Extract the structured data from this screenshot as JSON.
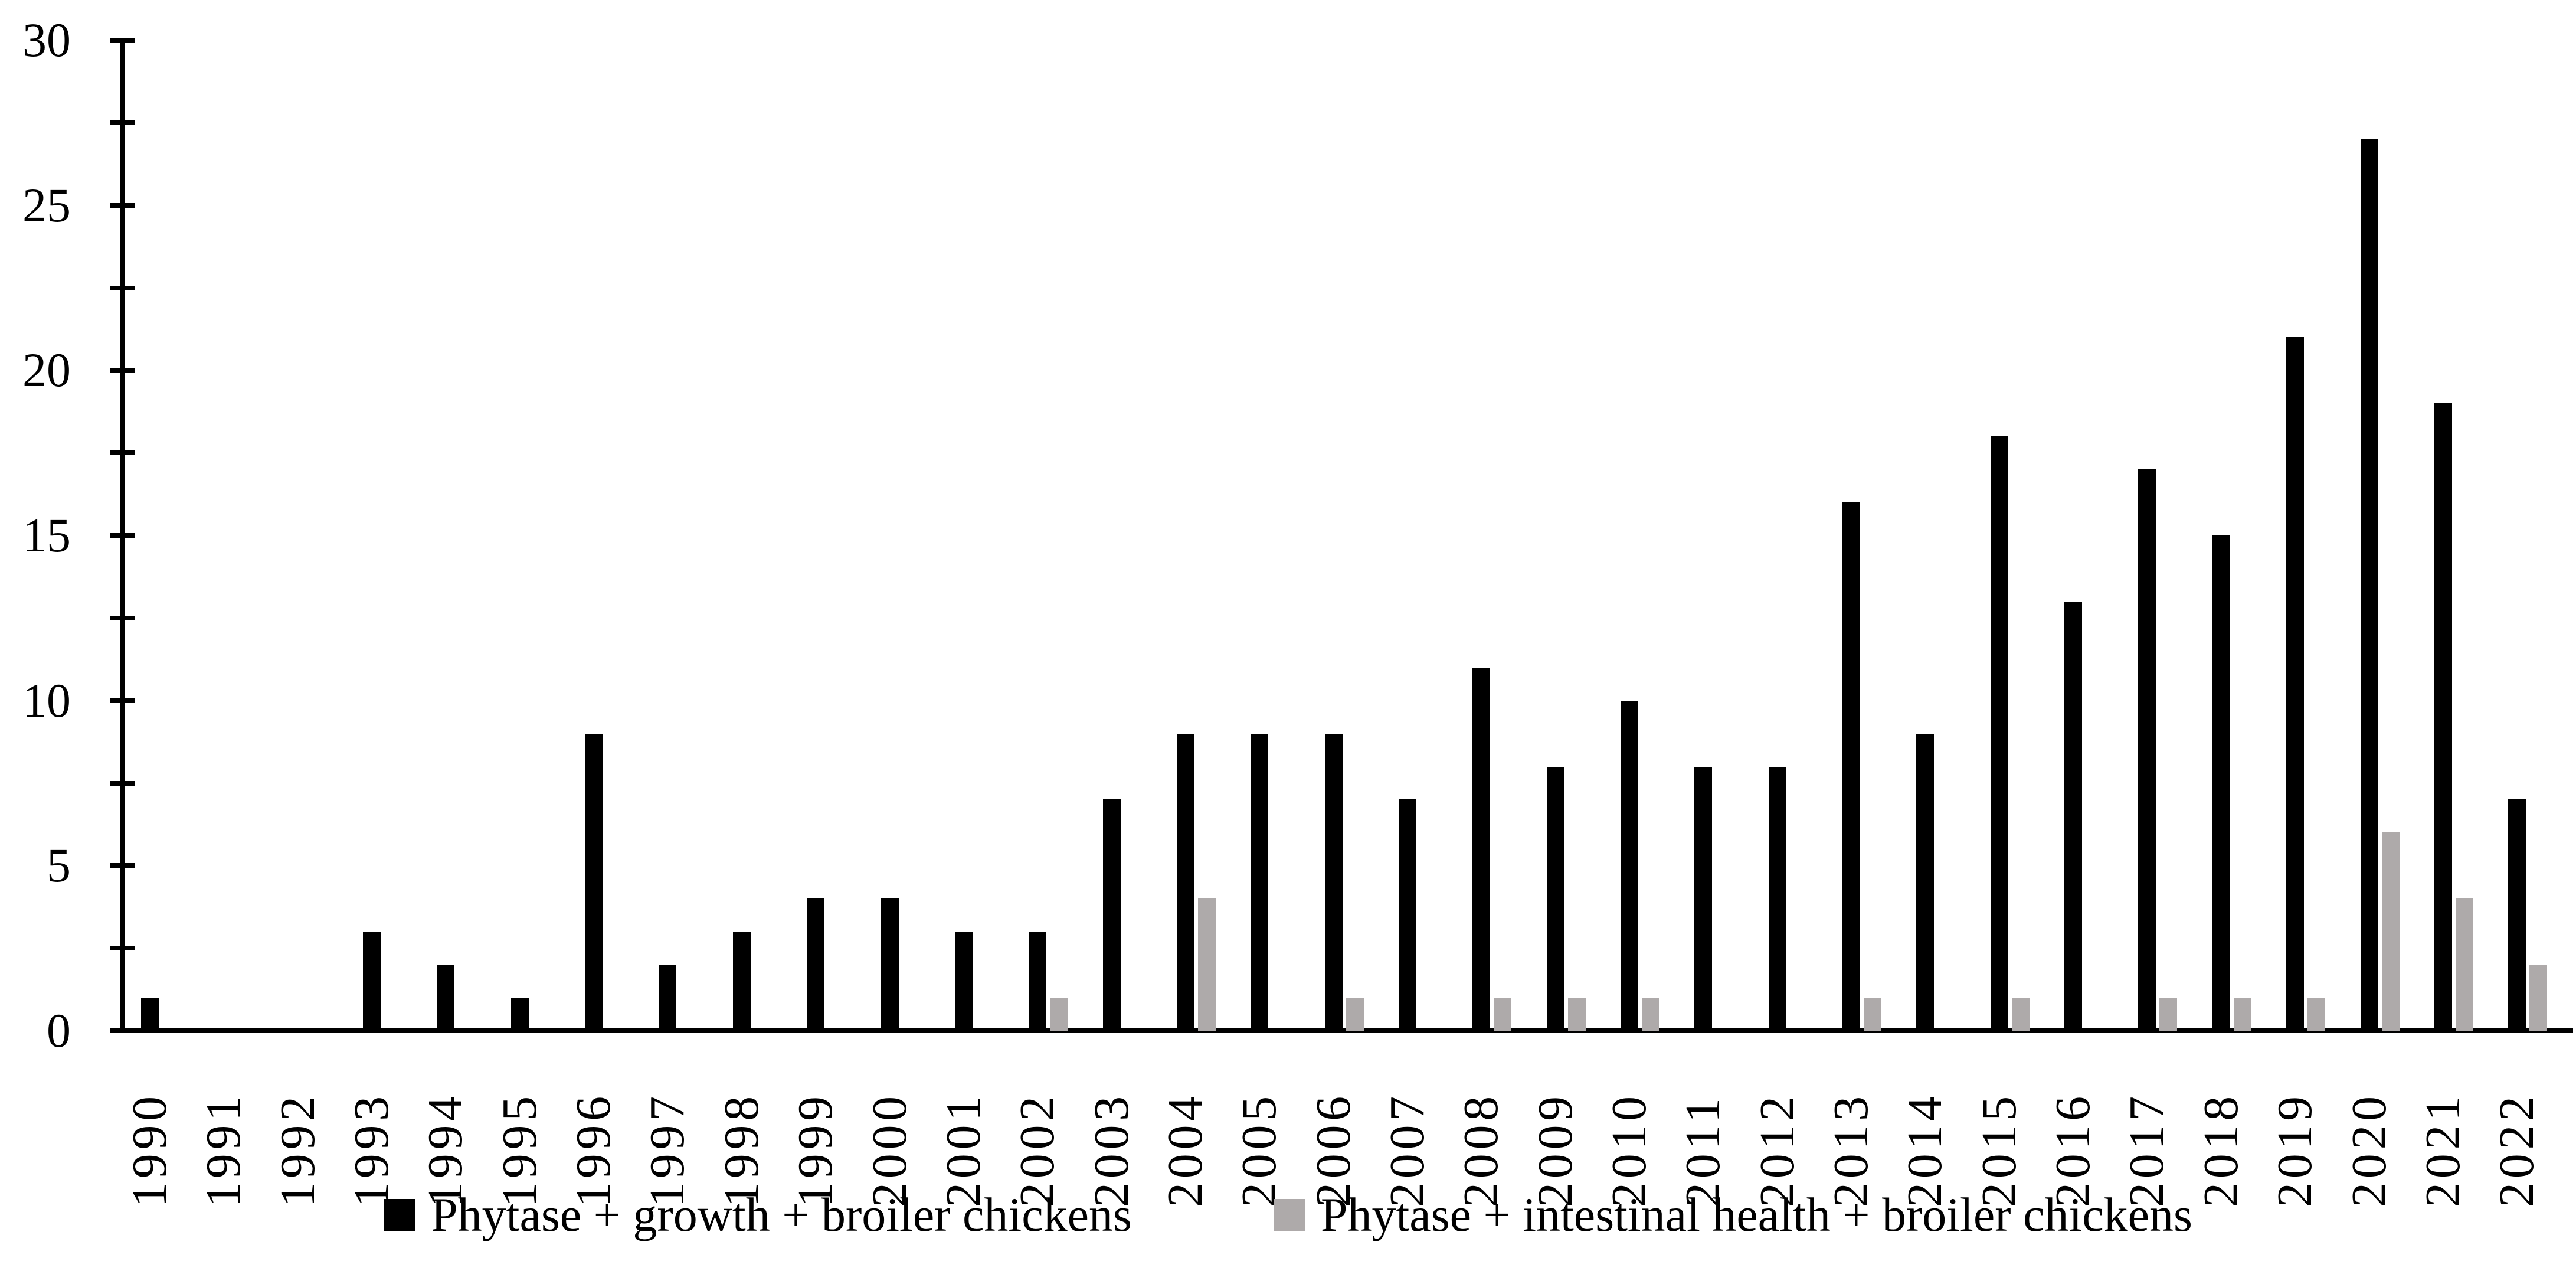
{
  "chart_data": {
    "type": "bar",
    "title": "",
    "xlabel": "",
    "ylabel": "",
    "categories": [
      "1990",
      "1991",
      "1992",
      "1993",
      "1994",
      "1995",
      "1996",
      "1997",
      "1998",
      "1999",
      "2000",
      "2001",
      "2002",
      "2003",
      "2004",
      "2005",
      "2006",
      "2007",
      "2008",
      "2009",
      "2010",
      "2011",
      "2012",
      "2013",
      "2014",
      "2015",
      "2016",
      "2017",
      "2018",
      "2019",
      "2020",
      "2021",
      "2022"
    ],
    "series": [
      {
        "name": "Phytase + growth + broiler chickens",
        "color": "#000000",
        "values": [
          1,
          0,
          0,
          3,
          2,
          1,
          9,
          2,
          3,
          4,
          4,
          3,
          3,
          7,
          9,
          9,
          9,
          7,
          11,
          8,
          10,
          8,
          8,
          16,
          9,
          18,
          13,
          17,
          15,
          21,
          27,
          19,
          7
        ]
      },
      {
        "name": "Phytase + intestinal health + broiler chickens",
        "color": "#aeaaaa",
        "values": [
          0,
          0,
          0,
          0,
          0,
          0,
          0,
          0,
          0,
          0,
          0,
          0,
          1,
          0,
          4,
          0,
          1,
          0,
          1,
          1,
          1,
          0,
          0,
          1,
          0,
          1,
          0,
          1,
          1,
          1,
          6,
          4,
          2
        ]
      }
    ],
    "ylim": [
      0,
      30
    ],
    "y_tick_labels": [
      "0",
      "5",
      "10",
      "15",
      "20",
      "25",
      "30"
    ],
    "y_minor_tick_step": 2.5,
    "grid": false,
    "legend_position": "bottom",
    "axis_color": "#000000",
    "background_color": "#ffffff"
  }
}
